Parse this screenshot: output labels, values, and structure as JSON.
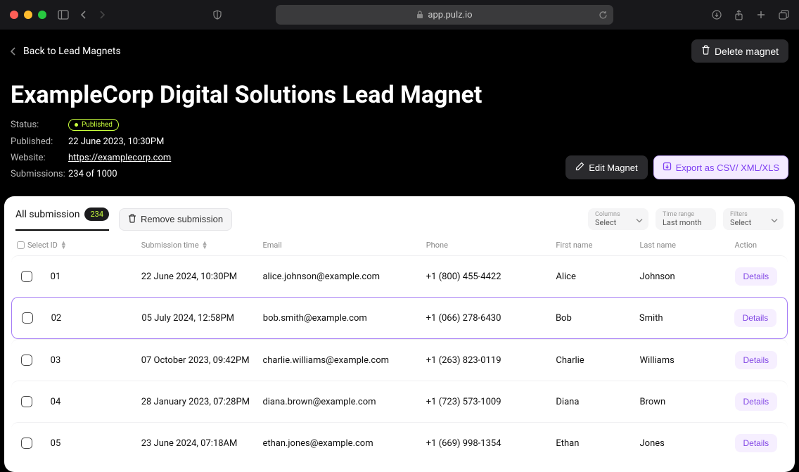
{
  "browser": {
    "url": "app.pulz.io"
  },
  "header": {
    "back_label": "Back to Lead Magnets",
    "delete_label": "Delete magnet",
    "title": "ExampleCorp Digital Solutions Lead Magnet"
  },
  "meta": {
    "status_label": "Status:",
    "status_value": "Published",
    "published_label": "Published:",
    "published_value": "22 June 2023, 10:30PM",
    "website_label": "Website:",
    "website_value": "https://examplecorp.com",
    "submissions_label": "Submissions:",
    "submissions_value": "234 of 1000"
  },
  "actions": {
    "edit_label": "Edit Magnet",
    "export_label": "Export as CSV/ XML/XLS"
  },
  "tabs": {
    "all_label": "All submission",
    "count": "234",
    "remove_label": "Remove submission"
  },
  "filters": {
    "columns_label": "Columns",
    "columns_value": "Select",
    "time_label": "Time range",
    "time_value": "Last month",
    "filters_label": "Filters",
    "filters_value": "Select"
  },
  "columns": {
    "select": "Select",
    "id": "ID",
    "time": "Submission time",
    "email": "Email",
    "phone": "Phone",
    "first": "First name",
    "last": "Last name",
    "action": "Action"
  },
  "rows": [
    {
      "id": "01",
      "time": "22 June 2024, 10:30PM",
      "email": "alice.johnson@example.com",
      "phone": "+1 (800) 455-4422",
      "first": "Alice",
      "last": "Johnson",
      "selected": false
    },
    {
      "id": "02",
      "time": "05 July 2024, 12:58PM",
      "email": "bob.smith@example.com",
      "phone": "+1 (066) 278-6430",
      "first": "Bob",
      "last": "Smith",
      "selected": true
    },
    {
      "id": "03",
      "time": "07 October 2023, 09:42PM",
      "email": "charlie.williams@example.com",
      "phone": "+1 (263) 823-0119",
      "first": "Charlie",
      "last": "Williams",
      "selected": false
    },
    {
      "id": "04",
      "time": "28 January 2023, 07:28PM",
      "email": "diana.brown@example.com",
      "phone": "+1 (723) 573-1009",
      "first": "Diana",
      "last": "Brown",
      "selected": false
    },
    {
      "id": "05",
      "time": "23 June 2024, 07:18AM",
      "email": "ethan.jones@example.com",
      "phone": "+1 (669) 998-1354",
      "first": "Ethan",
      "last": "Jones",
      "selected": false
    }
  ],
  "details_label": "Details",
  "colors": {
    "accent_purple": "#8247e5",
    "accent_lime": "#c9ff3c",
    "card_bg": "#ffffff",
    "page_bg": "#000000"
  }
}
